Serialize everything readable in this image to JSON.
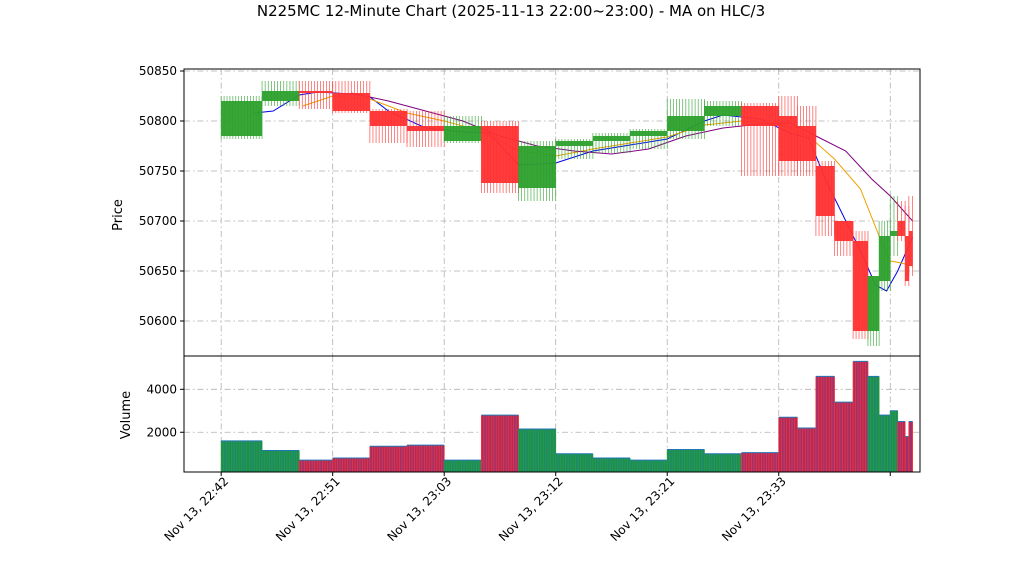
{
  "chart_data": {
    "type": "candlestick",
    "title": "N225MC 12-Minute Chart (2025-11-13 22:00~23:00) - MA on HLC/3",
    "colors": {
      "up": "#2ca02c",
      "down": "#ff3030",
      "ma_fast": "#0000ee",
      "ma_mid": "#f0a000",
      "ma_slow": "#800080"
    },
    "price_panel": {
      "ylabel": "Price",
      "ylim": [
        50565,
        50852
      ],
      "yticks": [
        50600,
        50650,
        50700,
        50750,
        50800,
        50850
      ],
      "grid": true
    },
    "volume_panel": {
      "ylabel": "Volume",
      "ylim": [
        150,
        5550
      ],
      "yticks": [
        2000,
        4000
      ],
      "grid": true
    },
    "xaxis": {
      "xlim": [
        -1.0,
        18.8
      ],
      "tick_positions": [
        0,
        3,
        6,
        9,
        12,
        15,
        18
      ],
      "tick_labels": [
        "Nov 13, 22:42",
        "Nov 13, 22:51",
        "Nov 13, 23:03",
        "Nov 13, 23:12",
        "Nov 13, 23:21",
        "Nov 13, 23:33",
        ""
      ]
    },
    "candles": [
      {
        "x": 0.55,
        "w": 1.1,
        "open": 50785,
        "high": 50825,
        "low": 50782,
        "close": 50820,
        "volume": 1600
      },
      {
        "x": 1.6,
        "w": 1.0,
        "open": 50820,
        "high": 50840,
        "low": 50815,
        "close": 50830,
        "volume": 1150
      },
      {
        "x": 2.55,
        "w": 0.9,
        "open": 50830,
        "high": 50840,
        "low": 50812,
        "close": 50828,
        "volume": 700
      },
      {
        "x": 3.5,
        "w": 1.0,
        "open": 50828,
        "high": 50840,
        "low": 50808,
        "close": 50810,
        "volume": 800
      },
      {
        "x": 4.5,
        "w": 1.0,
        "open": 50810,
        "high": 50812,
        "low": 50778,
        "close": 50795,
        "volume": 1350
      },
      {
        "x": 5.5,
        "w": 1.0,
        "open": 50795,
        "high": 50810,
        "low": 50774,
        "close": 50790,
        "volume": 1400
      },
      {
        "x": 6.5,
        "w": 1.0,
        "open": 50780,
        "high": 50805,
        "low": 50778,
        "close": 50795,
        "volume": 700
      },
      {
        "x": 7.5,
        "w": 1.0,
        "open": 50795,
        "high": 50800,
        "low": 50728,
        "close": 50738,
        "volume": 2800
      },
      {
        "x": 8.5,
        "w": 1.0,
        "open": 50733,
        "high": 50780,
        "low": 50720,
        "close": 50775,
        "volume": 2150
      },
      {
        "x": 9.5,
        "w": 1.0,
        "open": 50775,
        "high": 50782,
        "low": 50762,
        "close": 50780,
        "volume": 1000
      },
      {
        "x": 10.5,
        "w": 1.0,
        "open": 50780,
        "high": 50788,
        "low": 50768,
        "close": 50785,
        "volume": 800
      },
      {
        "x": 11.5,
        "w": 1.0,
        "open": 50785,
        "high": 50792,
        "low": 50772,
        "close": 50790,
        "volume": 700
      },
      {
        "x": 12.5,
        "w": 1.0,
        "open": 50790,
        "high": 50822,
        "low": 50782,
        "close": 50805,
        "volume": 1200
      },
      {
        "x": 13.5,
        "w": 1.0,
        "open": 50805,
        "high": 50820,
        "low": 50795,
        "close": 50815,
        "volume": 1000
      },
      {
        "x": 14.5,
        "w": 1.0,
        "open": 50815,
        "high": 50818,
        "low": 50745,
        "close": 50795,
        "volume": 1050
      },
      {
        "x": 15.25,
        "w": 0.5,
        "open": 50805,
        "high": 50825,
        "low": 50745,
        "close": 50760,
        "volume": 2700
      },
      {
        "x": 15.75,
        "w": 0.5,
        "open": 50795,
        "high": 50815,
        "low": 50745,
        "close": 50760,
        "volume": 2200
      },
      {
        "x": 16.25,
        "w": 0.5,
        "open": 50755,
        "high": 50760,
        "low": 50685,
        "close": 50705,
        "volume": 4600
      },
      {
        "x": 16.75,
        "w": 0.5,
        "open": 50700,
        "high": 50700,
        "low": 50665,
        "close": 50680,
        "volume": 3400
      },
      {
        "x": 17.2,
        "w": 0.4,
        "open": 50680,
        "high": 50690,
        "low": 50582,
        "close": 50590,
        "volume": 5300
      },
      {
        "x": 17.55,
        "w": 0.3,
        "open": 50590,
        "high": 50645,
        "low": 50575,
        "close": 50645,
        "volume": 4600
      },
      {
        "x": 17.85,
        "w": 0.3,
        "open": 50640,
        "high": 50700,
        "low": 50630,
        "close": 50685,
        "volume": 2800
      },
      {
        "x": 18.1,
        "w": 0.2,
        "open": 50685,
        "high": 50725,
        "low": 50665,
        "close": 50690,
        "volume": 3000
      },
      {
        "x": 18.3,
        "w": 0.2,
        "open": 50700,
        "high": 50720,
        "low": 50680,
        "close": 50685,
        "volume": 2500
      },
      {
        "x": 18.45,
        "w": 0.1,
        "open": 50685,
        "high": 50715,
        "low": 50635,
        "close": 50640,
        "volume": 1800
      },
      {
        "x": 18.55,
        "w": 0.1,
        "open": 50690,
        "high": 50725,
        "low": 50645,
        "close": 50655,
        "volume": 2500
      }
    ],
    "series": [
      {
        "color": "#0000ee",
        "points": [
          [
            0.9,
            50808
          ],
          [
            1.4,
            50810
          ],
          [
            2.1,
            50826
          ],
          [
            2.6,
            50829
          ],
          [
            3.5,
            50827
          ],
          [
            4.0,
            50824
          ],
          [
            4.5,
            50810
          ],
          [
            5.5,
            50793
          ],
          [
            6.5,
            50789
          ],
          [
            7.2,
            50788
          ],
          [
            8.0,
            50756
          ],
          [
            9.0,
            50758
          ],
          [
            10.0,
            50770
          ],
          [
            11.0,
            50776
          ],
          [
            12.0,
            50782
          ],
          [
            13.0,
            50800
          ],
          [
            13.5,
            50806
          ],
          [
            14.5,
            50802
          ],
          [
            15.3,
            50788
          ],
          [
            15.8,
            50783
          ],
          [
            16.3,
            50738
          ],
          [
            16.7,
            50708
          ],
          [
            17.3,
            50662
          ],
          [
            17.6,
            50636
          ],
          [
            17.9,
            50630
          ],
          [
            18.2,
            50650
          ],
          [
            18.6,
            50684
          ]
        ]
      },
      {
        "color": "#f0a000",
        "points": [
          [
            2.2,
            50815
          ],
          [
            3.0,
            50825
          ],
          [
            4.0,
            50822
          ],
          [
            5.0,
            50808
          ],
          [
            6.0,
            50800
          ],
          [
            7.0,
            50790
          ],
          [
            8.0,
            50770
          ],
          [
            9.0,
            50765
          ],
          [
            10.0,
            50772
          ],
          [
            11.0,
            50778
          ],
          [
            12.0,
            50784
          ],
          [
            13.0,
            50796
          ],
          [
            14.0,
            50800
          ],
          [
            15.0,
            50797
          ],
          [
            15.8,
            50785
          ],
          [
            16.5,
            50762
          ],
          [
            17.2,
            50732
          ],
          [
            17.7,
            50685
          ],
          [
            18.0,
            50660
          ],
          [
            18.3,
            50658
          ],
          [
            18.6,
            50655
          ]
        ]
      },
      {
        "color": "#800080",
        "points": [
          [
            3.5,
            50828
          ],
          [
            4.5,
            50820
          ],
          [
            5.5,
            50810
          ],
          [
            6.5,
            50800
          ],
          [
            7.5,
            50785
          ],
          [
            8.5,
            50775
          ],
          [
            9.5,
            50770
          ],
          [
            10.5,
            50767
          ],
          [
            11.5,
            50772
          ],
          [
            12.5,
            50785
          ],
          [
            13.5,
            50793
          ],
          [
            14.5,
            50797
          ],
          [
            15.3,
            50798
          ],
          [
            16.0,
            50785
          ],
          [
            16.8,
            50770
          ],
          [
            17.5,
            50742
          ],
          [
            18.0,
            50725
          ],
          [
            18.6,
            50700
          ]
        ]
      }
    ]
  }
}
